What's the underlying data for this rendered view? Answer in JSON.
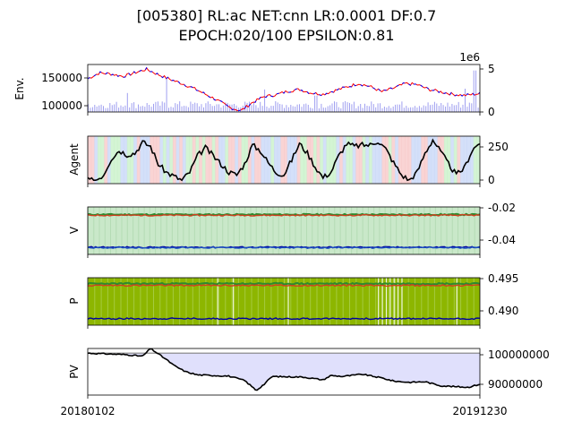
{
  "figure": {
    "title_line1": "[005380] RL:ac NET:cnn LR:0.0001 DF:0.7",
    "title_line2": "EPOCH:020/100 EPSILON:0.81"
  },
  "chart_data": [
    {
      "type": "line",
      "panel": "env",
      "ylabel": "Env.",
      "left_ticks": [
        "150000",
        "100000"
      ],
      "right_ticks": [
        "5",
        "0"
      ],
      "right_axis_offset_label": "1e6",
      "left_ylim": [
        92000,
        172000
      ],
      "right_ylim": [
        0,
        5500000
      ],
      "price_series": {
        "name": "close",
        "colors": [
          "#ff0000",
          "#0000ff"
        ],
        "x": [
          0,
          0.03,
          0.06,
          0.09,
          0.12,
          0.15,
          0.18,
          0.21,
          0.24,
          0.27,
          0.3,
          0.33,
          0.36,
          0.39,
          0.42,
          0.45,
          0.48,
          0.51,
          0.54,
          0.57,
          0.6,
          0.63,
          0.66,
          0.69,
          0.72,
          0.75,
          0.78,
          0.81,
          0.84,
          0.87,
          0.9,
          0.93,
          0.96,
          1.0
        ],
        "values": [
          148000,
          158000,
          156000,
          152000,
          158000,
          164000,
          155000,
          147000,
          140000,
          132000,
          122000,
          112000,
          100000,
          94000,
          108000,
          118000,
          121000,
          127000,
          130000,
          124000,
          122000,
          128000,
          134000,
          140000,
          135000,
          126000,
          132000,
          140000,
          138000,
          130000,
          126000,
          122000,
          120000,
          123000
        ]
      },
      "volume_series": {
        "name": "volume",
        "color": "#a0a0f0",
        "level": 700000,
        "spikes": [
          [
            0.1,
            2200000
          ],
          [
            0.2,
            3900000
          ],
          [
            0.45,
            2600000
          ],
          [
            0.58,
            1900000
          ],
          [
            0.96,
            2700000
          ],
          [
            0.985,
            4800000
          ]
        ]
      }
    },
    {
      "type": "line",
      "panel": "agent",
      "ylabel": "Agent",
      "ticks": [
        "250",
        "0"
      ],
      "ylim": [
        -25,
        325
      ],
      "series": [
        {
          "name": "holdings",
          "color": "#000000",
          "x": [
            0,
            0.02,
            0.04,
            0.06,
            0.08,
            0.1,
            0.12,
            0.14,
            0.16,
            0.18,
            0.2,
            0.22,
            0.24,
            0.26,
            0.28,
            0.3,
            0.32,
            0.34,
            0.36,
            0.38,
            0.4,
            0.42,
            0.44,
            0.46,
            0.48,
            0.5,
            0.52,
            0.54,
            0.56,
            0.58,
            0.6,
            0.62,
            0.64,
            0.66,
            0.68,
            0.7,
            0.72,
            0.74,
            0.76,
            0.78,
            0.8,
            0.82,
            0.84,
            0.86,
            0.88,
            0.9,
            0.92,
            0.94,
            0.96,
            0.98,
            1.0
          ],
          "values": [
            0,
            0,
            40,
            160,
            220,
            190,
            200,
            280,
            250,
            120,
            60,
            30,
            0,
            60,
            180,
            240,
            180,
            120,
            60,
            40,
            120,
            260,
            220,
            130,
            60,
            40,
            150,
            270,
            200,
            100,
            20,
            60,
            180,
            270,
            250,
            260,
            260,
            290,
            230,
            130,
            40,
            0,
            60,
            200,
            300,
            210,
            120,
            40,
            90,
            220,
            280
          ]
        }
      ],
      "background_stripes": [
        "#f7c6c6",
        "#c6f0c6",
        "#c6d6f7"
      ]
    },
    {
      "type": "line",
      "panel": "value",
      "ylabel": "V",
      "ticks": [
        "-0.02",
        "-0.04"
      ],
      "ylim": [
        -0.0525,
        -0.0195
      ],
      "series": [
        {
          "name": "max",
          "color": "#2e8b2e",
          "values_const": -0.0248
        },
        {
          "name": "mid",
          "color": "#d04020",
          "values_const": -0.0253
        },
        {
          "name": "low",
          "color": "#0000a0",
          "values_const": -0.0475
        },
        {
          "name": "low2",
          "color": "#1a4fc0",
          "values_const": -0.0478
        }
      ],
      "background": "#c9e8c9"
    },
    {
      "type": "line",
      "panel": "policy",
      "ylabel": "P",
      "ticks": [
        "0.495",
        "0.490"
      ],
      "ylim": [
        0.4873,
        0.4953
      ],
      "series": [
        {
          "name": "max",
          "color": "#2e8b2e",
          "values_const": 0.4943
        },
        {
          "name": "mid",
          "color": "#d04020",
          "values_const": 0.494
        },
        {
          "name": "low",
          "color": "#0000a0",
          "values_const": 0.4884
        }
      ],
      "background": "#8db600"
    },
    {
      "type": "line",
      "panel": "pv",
      "ylabel": "PV",
      "ticks": [
        "100000000",
        "90000000"
      ],
      "ylim": [
        86500000,
        101500000
      ],
      "baseline": 100000000,
      "series": [
        {
          "name": "portfolio_value",
          "color": "#000000",
          "x": [
            0,
            0.1,
            0.14,
            0.16,
            0.2,
            0.22,
            0.25,
            0.28,
            0.32,
            0.36,
            0.4,
            0.43,
            0.45,
            0.47,
            0.5,
            0.55,
            0.6,
            0.62,
            0.65,
            0.7,
            0.75,
            0.78,
            0.82,
            0.86,
            0.9,
            0.94,
            0.97,
            1.0
          ],
          "values": [
            100000000,
            99500000,
            99000000,
            101500000,
            98000000,
            96000000,
            94000000,
            93000000,
            92800000,
            92600000,
            91200000,
            88000000,
            90000000,
            92500000,
            92400000,
            92300000,
            91400000,
            92800000,
            92500000,
            93200000,
            92000000,
            91000000,
            90600000,
            90800000,
            89500000,
            89200000,
            89000000,
            90000000
          ]
        }
      ],
      "fill_color": "#e0e0fc",
      "baseline_color": "#808080"
    }
  ],
  "x_axis": {
    "start_label": "20180102",
    "end_label": "20191230"
  }
}
